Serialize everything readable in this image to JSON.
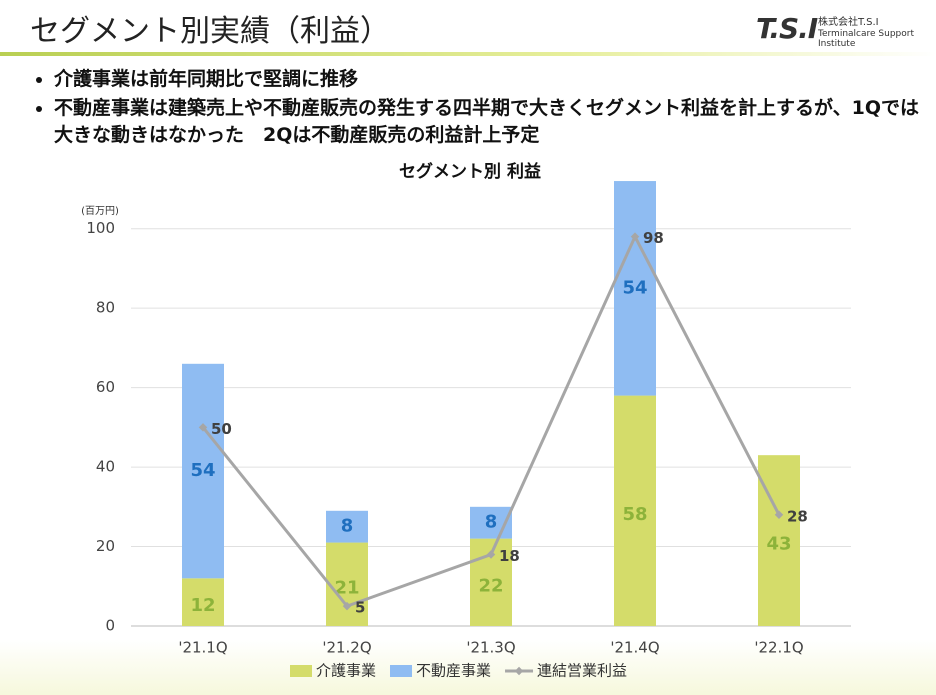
{
  "header": {
    "title": "セグメント別実績（利益）",
    "logo": "T.S.I",
    "company": "株式会社T.S.I",
    "company_en": "Terminalcare Support Institute"
  },
  "bullets": [
    "介護事業は前年同期比で堅調に推移",
    "不動産事業は建築売上や不動産販売の発生する四半期で大きくセグメント利益を計上するが、1Qでは大きな動きはなかった　2Qは不動産販売の利益計上予定"
  ],
  "chart_data": {
    "type": "stacked_bar_line",
    "title": "セグメント別  利益",
    "y_unit": "(百万円)",
    "categories": [
      "'21.1Q",
      "'21.2Q",
      "'21.3Q",
      "'21.4Q",
      "'22.1Q"
    ],
    "series": [
      {
        "name": "介護事業",
        "color": "#d4dc6a",
        "label_color": "#8db33a",
        "values": [
          12,
          21,
          22,
          58,
          43
        ]
      },
      {
        "name": "不動産事業",
        "color": "#8fbcf2",
        "label_color": "#1f6fbf",
        "values": [
          54,
          8,
          8,
          54,
          null
        ]
      },
      {
        "name": "連結営業利益",
        "color": "#a6a6a6",
        "label_color": "#404040",
        "type": "line",
        "values": [
          50,
          5,
          18,
          98,
          28
        ]
      }
    ],
    "ylim": [
      0,
      110
    ],
    "yticks": [
      0,
      20,
      40,
      60,
      80,
      100
    ],
    "grid": true
  }
}
